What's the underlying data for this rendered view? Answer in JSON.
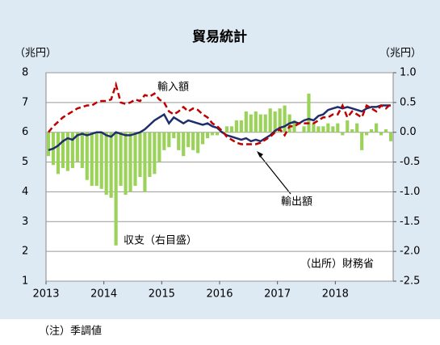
{
  "chart_data": {
    "type": "combo",
    "title": "貿易統計",
    "y_label": "（兆円）",
    "y2_label": "（兆円）",
    "annotations": [
      "輸入額",
      "輸出額",
      "収支（右目盛）",
      "（出所）財務省"
    ],
    "note": "（注）季調値",
    "categories": [
      "2013",
      null,
      null,
      null,
      null,
      null,
      null,
      null,
      null,
      null,
      null,
      null,
      "2014",
      null,
      null,
      null,
      null,
      null,
      null,
      null,
      null,
      null,
      null,
      null,
      "2015",
      null,
      null,
      null,
      null,
      null,
      null,
      null,
      null,
      null,
      null,
      null,
      "2016",
      null,
      null,
      null,
      null,
      null,
      null,
      null,
      null,
      null,
      null,
      null,
      "2017",
      null,
      null,
      null,
      null,
      null,
      null,
      null,
      null,
      null,
      null,
      null,
      "2018",
      null,
      null,
      null,
      null,
      null,
      null,
      null,
      null,
      null,
      null,
      null
    ],
    "series": [
      {
        "name": "収支",
        "type": "bar",
        "axis": "y2",
        "color": "#9bd25a",
        "values": [
          -0.4,
          -0.55,
          -0.7,
          -0.6,
          -0.65,
          -0.6,
          -0.5,
          -0.6,
          -0.8,
          -0.9,
          -0.9,
          -0.95,
          -1.05,
          -1.1,
          -1.9,
          -0.9,
          -1.05,
          -1.0,
          -0.9,
          -0.75,
          -1.0,
          -0.75,
          -0.7,
          -0.5,
          -0.3,
          -0.25,
          -0.1,
          -0.3,
          -0.4,
          -0.25,
          -0.3,
          -0.35,
          -0.2,
          -0.1,
          -0.05,
          -0.05,
          0.02,
          0.1,
          0.1,
          0.2,
          0.2,
          0.35,
          0.3,
          0.35,
          0.3,
          0.3,
          0.4,
          0.35,
          0.4,
          0.45,
          0.3,
          0.2,
          0.0,
          0.1,
          0.65,
          0.15,
          0.1,
          0.1,
          0.15,
          0.1,
          0.15,
          -0.05,
          0.2,
          0.05,
          0.15,
          -0.3,
          -0.05,
          0.05,
          0.15,
          -0.05,
          0.05,
          -0.15
        ]
      },
      {
        "name": "輸出額",
        "type": "line",
        "color": "#1f2d6b",
        "dashed": false,
        "values": [
          5.4,
          5.45,
          5.55,
          5.7,
          5.8,
          5.75,
          5.9,
          5.95,
          5.9,
          5.95,
          6.0,
          6.0,
          5.9,
          5.85,
          6.0,
          5.95,
          5.9,
          5.9,
          5.95,
          6.0,
          6.1,
          6.25,
          6.4,
          6.5,
          6.6,
          6.3,
          6.5,
          6.4,
          6.3,
          6.4,
          6.35,
          6.3,
          6.25,
          6.3,
          6.2,
          6.15,
          6.0,
          5.9,
          5.85,
          5.8,
          5.75,
          5.8,
          5.7,
          5.75,
          5.7,
          5.8,
          5.9,
          6.05,
          6.15,
          6.2,
          6.3,
          6.35,
          6.3,
          6.4,
          6.45,
          6.4,
          6.55,
          6.6,
          6.75,
          6.8,
          6.85,
          6.8,
          6.85,
          6.8,
          6.75,
          6.7,
          6.8,
          6.85,
          6.85,
          6.9,
          6.9,
          6.9
        ]
      },
      {
        "name": "輸入額",
        "type": "line",
        "color": "#c00000",
        "dashed": true,
        "values": [
          6.0,
          6.2,
          6.35,
          6.5,
          6.6,
          6.7,
          6.8,
          6.85,
          6.9,
          6.9,
          7.0,
          7.05,
          7.05,
          7.1,
          7.6,
          7.0,
          6.95,
          7.0,
          7.1,
          7.05,
          7.25,
          7.2,
          7.3,
          7.1,
          7.0,
          6.7,
          6.6,
          6.7,
          6.85,
          6.7,
          6.8,
          6.75,
          6.6,
          6.5,
          6.3,
          6.2,
          6.05,
          5.85,
          5.75,
          5.65,
          5.6,
          5.6,
          5.6,
          5.6,
          5.65,
          5.75,
          5.85,
          6.0,
          6.1,
          5.9,
          6.2,
          6.2,
          6.3,
          6.3,
          6.3,
          6.3,
          6.4,
          6.5,
          6.5,
          6.6,
          6.6,
          6.9,
          6.5,
          6.7,
          6.6,
          6.5,
          6.9,
          6.8,
          6.7,
          6.9,
          6.8,
          6.95
        ]
      }
    ],
    "ylim": [
      1,
      8
    ],
    "yticks": [
      1,
      2,
      3,
      4,
      5,
      6,
      7,
      8
    ],
    "y2lim": [
      -2.5,
      1.0
    ],
    "y2ticks": [
      {
        "value": -2.5,
        "label": "-2.5"
      },
      {
        "value": -2.0,
        "label": "-2.0"
      },
      {
        "value": -1.5,
        "label": "-1.5"
      },
      {
        "value": -1.0,
        "label": "-1.0"
      },
      {
        "value": -0.5,
        "label": "-0.5"
      },
      {
        "value": 0.0,
        "label": "0.0"
      },
      {
        "value": 0.5,
        "label": "0.5"
      },
      {
        "value": 1.0,
        "label": "1.0"
      }
    ],
    "grid": true
  }
}
